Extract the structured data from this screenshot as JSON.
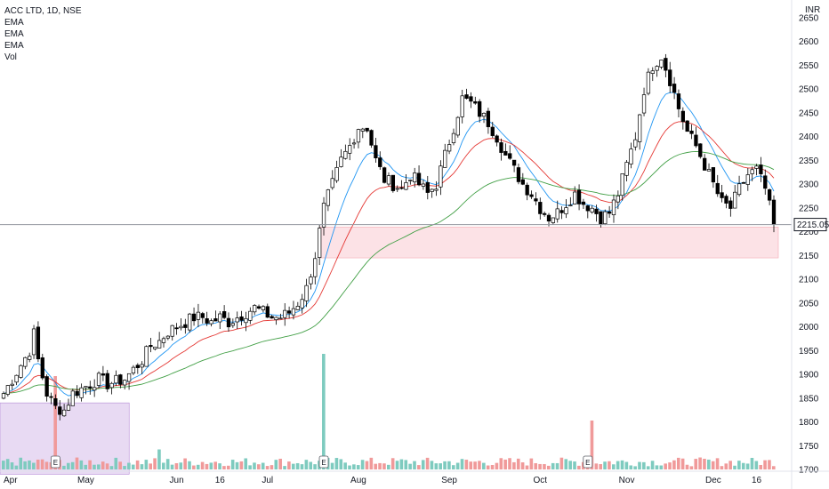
{
  "header": {
    "symbol_line": "ACC LTD, 1D, NSE",
    "indicators": [
      "EMA",
      "EMA",
      "EMA",
      "Vol"
    ]
  },
  "currency": "INR",
  "last_price": "2215.05",
  "colors": {
    "up": "#ffffff",
    "down": "#000000",
    "ema_fast": "#2196f3",
    "ema_mid": "#e53935",
    "ema_slow": "#43a047",
    "vol_up": "#7ecbbf",
    "vol_down": "#f09a9a",
    "zone_demand": "#fcdde2",
    "zone_purple": "#e4d3f1"
  },
  "chart_data": {
    "type": "candlestick",
    "title": "ACC LTD, 1D, NSE",
    "ylim": [
      1700,
      2650
    ],
    "y_ticks": [
      1700,
      1750,
      1800,
      1850,
      1900,
      1950,
      2000,
      2050,
      2100,
      2150,
      2200,
      2250,
      2300,
      2350,
      2400,
      2450,
      2500,
      2550,
      2600,
      2650
    ],
    "x_ticks": [
      {
        "label": "Apr",
        "index": 0
      },
      {
        "label": "May",
        "index": 19
      },
      {
        "label": "Jun",
        "index": 40
      },
      {
        "label": "16",
        "index": 50
      },
      {
        "label": "Jul",
        "index": 61
      },
      {
        "label": "Aug",
        "index": 82
      },
      {
        "label": "Sep",
        "index": 103
      },
      {
        "label": "Oct",
        "index": 124
      },
      {
        "label": "Nov",
        "index": 144
      },
      {
        "label": "Dec",
        "index": 164
      },
      {
        "label": "16",
        "index": 174
      }
    ],
    "zones": [
      {
        "name": "demand",
        "from_index": 74,
        "to_index": 178,
        "low": 2145,
        "high": 2210
      },
      {
        "name": "range",
        "from_index": 0,
        "to_index": 28,
        "low": 1690,
        "high": 1840
      }
    ],
    "events": [
      {
        "label": "E",
        "index": 12
      },
      {
        "label": "E",
        "index": 74
      },
      {
        "label": "E",
        "index": 135
      }
    ],
    "anchors": [
      [
        0,
        1860
      ],
      [
        2,
        1890
      ],
      [
        4,
        1920
      ],
      [
        6,
        1950
      ],
      [
        7,
        1985
      ],
      [
        8,
        1930
      ],
      [
        10,
        1860
      ],
      [
        12,
        1830
      ],
      [
        14,
        1825
      ],
      [
        16,
        1860
      ],
      [
        18,
        1870
      ],
      [
        20,
        1880
      ],
      [
        22,
        1890
      ],
      [
        24,
        1880
      ],
      [
        26,
        1885
      ],
      [
        28,
        1890
      ],
      [
        30,
        1910
      ],
      [
        32,
        1930
      ],
      [
        34,
        1960
      ],
      [
        36,
        1970
      ],
      [
        38,
        1990
      ],
      [
        40,
        2000
      ],
      [
        42,
        2010
      ],
      [
        44,
        2020
      ],
      [
        46,
        2020
      ],
      [
        48,
        2010
      ],
      [
        50,
        2020
      ],
      [
        52,
        2010
      ],
      [
        54,
        2020
      ],
      [
        56,
        2030
      ],
      [
        58,
        2040
      ],
      [
        60,
        2030
      ],
      [
        62,
        2020
      ],
      [
        64,
        2020
      ],
      [
        66,
        2030
      ],
      [
        68,
        2050
      ],
      [
        70,
        2080
      ],
      [
        72,
        2150
      ],
      [
        74,
        2250
      ],
      [
        76,
        2300
      ],
      [
        78,
        2350
      ],
      [
        80,
        2380
      ],
      [
        82,
        2420
      ],
      [
        84,
        2420
      ],
      [
        86,
        2350
      ],
      [
        88,
        2310
      ],
      [
        90,
        2300
      ],
      [
        92,
        2290
      ],
      [
        94,
        2320
      ],
      [
        96,
        2300
      ],
      [
        98,
        2280
      ],
      [
        100,
        2300
      ],
      [
        102,
        2360
      ],
      [
        104,
        2420
      ],
      [
        106,
        2480
      ],
      [
        108,
        2470
      ],
      [
        110,
        2450
      ],
      [
        112,
        2430
      ],
      [
        114,
        2400
      ],
      [
        116,
        2360
      ],
      [
        118,
        2330
      ],
      [
        120,
        2300
      ],
      [
        122,
        2280
      ],
      [
        124,
        2250
      ],
      [
        126,
        2230
      ],
      [
        128,
        2240
      ],
      [
        130,
        2260
      ],
      [
        132,
        2280
      ],
      [
        134,
        2260
      ],
      [
        136,
        2250
      ],
      [
        138,
        2230
      ],
      [
        140,
        2240
      ],
      [
        142,
        2280
      ],
      [
        144,
        2340
      ],
      [
        146,
        2400
      ],
      [
        148,
        2500
      ],
      [
        150,
        2550
      ],
      [
        152,
        2570
      ],
      [
        154,
        2520
      ],
      [
        156,
        2460
      ],
      [
        158,
        2410
      ],
      [
        160,
        2380
      ],
      [
        162,
        2340
      ],
      [
        164,
        2300
      ],
      [
        166,
        2260
      ],
      [
        168,
        2250
      ],
      [
        170,
        2290
      ],
      [
        172,
        2320
      ],
      [
        174,
        2330
      ],
      [
        176,
        2290
      ],
      [
        178,
        2215
      ]
    ],
    "volume_spikes": [
      {
        "index": 12,
        "volume": 210,
        "down": true
      },
      {
        "index": 36,
        "volume": 45,
        "down": false
      },
      {
        "index": 74,
        "volume": 260,
        "down": false
      },
      {
        "index": 136,
        "volume": 110,
        "down": true
      }
    ]
  }
}
